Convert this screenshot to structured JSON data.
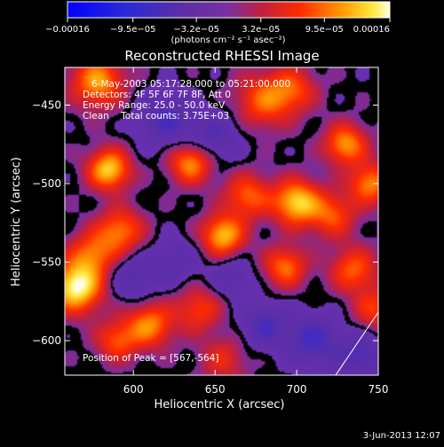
{
  "chart_data": {
    "type": "heatmap",
    "title": "Reconstructed RHESSI Image",
    "xlabel": "Heliocentric X (arcsec)",
    "ylabel": "Heliocentric Y (arcsec)",
    "xlim": [
      558,
      750
    ],
    "ylim": [
      -622,
      -426
    ],
    "x_ticks": [
      {
        "value": 600,
        "label": "600"
      },
      {
        "value": 650,
        "label": "650"
      },
      {
        "value": 700,
        "label": "700"
      },
      {
        "value": 750,
        "label": "750"
      }
    ],
    "y_ticks": [
      {
        "value": -450,
        "label": "−450"
      },
      {
        "value": -500,
        "label": "−500"
      },
      {
        "value": -550,
        "label": "−550"
      },
      {
        "value": -600,
        "label": "−600"
      }
    ],
    "colorbar": {
      "range": [
        -0.00016,
        0.00016
      ],
      "tick_values": [
        -0.00016,
        -9.5e-05,
        -3.2e-05,
        3.2e-05,
        9.5e-05,
        0.00016
      ],
      "tick_labels": [
        "−0.00016",
        "−9.5e−05",
        "−3.2e−05",
        "3.2e−05",
        "9.5e−05",
        "0.00016"
      ],
      "units_label": "(photons cm⁻² s⁻¹ asec⁻²)"
    },
    "annotations": [
      "6-May-2003 05:17:28.000 to 05:21:00.000",
      "Detectors: 4F 5F 6F 7F 8F, Att 0",
      "Energy Range: 25.0 - 50.0 keV",
      "Clean    Total counts: 3.75E+03"
    ],
    "peak_label": "Position of Peak = [567,-564]",
    "peak_position": [
      567,
      -564
    ],
    "features": [
      {
        "x": 565,
        "y": -566,
        "amp": 1.0,
        "width": 11
      },
      {
        "x": 578,
        "y": -435,
        "amp": 0.72,
        "width": 11
      },
      {
        "x": 585,
        "y": -491,
        "amp": 0.85,
        "width": 9
      },
      {
        "x": 592,
        "y": -530,
        "amp": 0.6,
        "width": 10
      },
      {
        "x": 575,
        "y": -545,
        "amp": 0.55,
        "width": 10
      },
      {
        "x": 610,
        "y": -590,
        "amp": 0.65,
        "width": 10
      },
      {
        "x": 590,
        "y": -600,
        "amp": 0.5,
        "width": 9
      },
      {
        "x": 635,
        "y": -487,
        "amp": 0.7,
        "width": 9
      },
      {
        "x": 655,
        "y": -533,
        "amp": 0.8,
        "width": 9
      },
      {
        "x": 670,
        "y": -508,
        "amp": 0.55,
        "width": 10
      },
      {
        "x": 700,
        "y": -512,
        "amp": 0.85,
        "width": 10
      },
      {
        "x": 722,
        "y": -520,
        "amp": 0.5,
        "width": 10
      },
      {
        "x": 680,
        "y": -447,
        "amp": 0.55,
        "width": 12
      },
      {
        "x": 698,
        "y": -440,
        "amp": 0.45,
        "width": 10
      },
      {
        "x": 730,
        "y": -475,
        "amp": 0.7,
        "width": 9
      },
      {
        "x": 745,
        "y": -500,
        "amp": 0.65,
        "width": 9
      },
      {
        "x": 735,
        "y": -555,
        "amp": 0.55,
        "width": 10
      },
      {
        "x": 748,
        "y": -580,
        "amp": 0.45,
        "width": 9
      },
      {
        "x": 693,
        "y": -553,
        "amp": 0.6,
        "width": 9
      },
      {
        "x": 640,
        "y": -580,
        "amp": 0.45,
        "width": 10
      },
      {
        "x": 655,
        "y": -612,
        "amp": 0.35,
        "width": 10
      },
      {
        "x": 710,
        "y": -600,
        "amp": -0.45,
        "width": 12
      },
      {
        "x": 680,
        "y": -590,
        "amp": -0.4,
        "width": 10
      },
      {
        "x": 620,
        "y": -460,
        "amp": -0.4,
        "width": 12
      },
      {
        "x": 650,
        "y": -470,
        "amp": -0.35,
        "width": 11
      },
      {
        "x": 600,
        "y": -560,
        "amp": -0.35,
        "width": 10
      },
      {
        "x": 625,
        "y": -550,
        "amp": -0.3,
        "width": 10
      },
      {
        "x": 740,
        "y": -610,
        "amp": -0.4,
        "width": 10
      },
      {
        "x": 660,
        "y": -560,
        "amp": -0.3,
        "width": 9
      }
    ],
    "contour_hint": "black lines trace the zero level between positive and negative flux"
  },
  "footer": {
    "timestamp": "3-Jun-2013 12:07"
  },
  "colors": {
    "background": "#000000",
    "text": "#ffffff",
    "low_color": "#0000ff",
    "mid_color": "#6a2fb0",
    "high_color": "#ffff00"
  }
}
